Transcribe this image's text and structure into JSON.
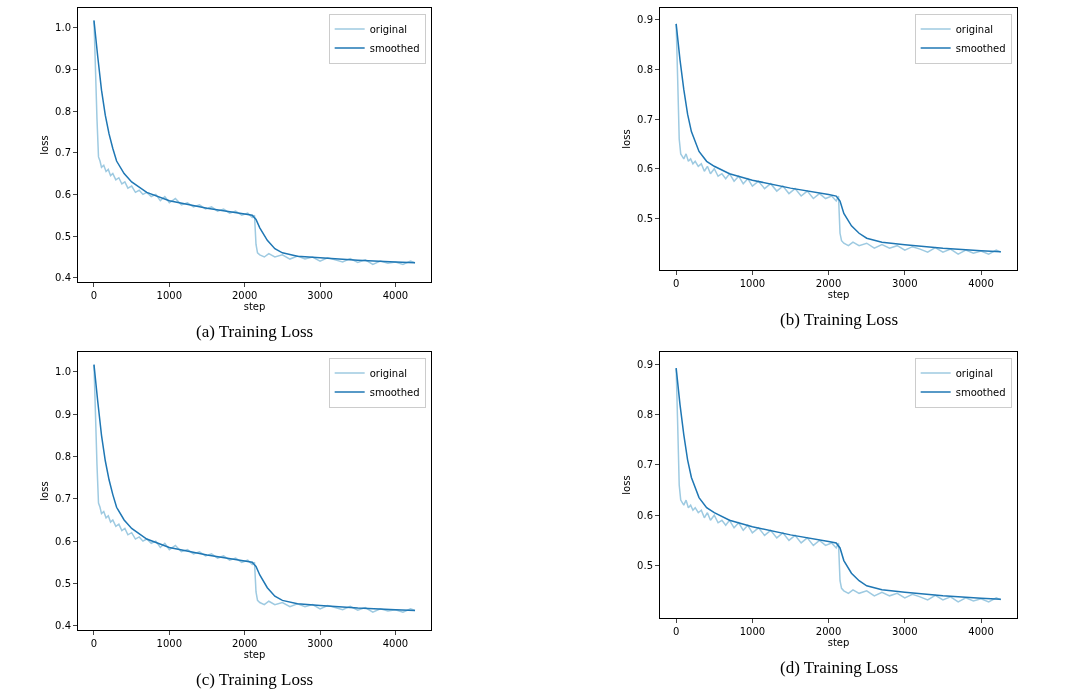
{
  "chart_data": [
    {
      "type": "line",
      "title": "(a) Training Loss",
      "xlabel": "step",
      "ylabel": "loss",
      "xlim": [
        -212,
        4472
      ],
      "ylim": [
        0.39,
        1.047
      ],
      "xticks": [
        0,
        1000,
        2000,
        3000,
        4000
      ],
      "yticks": [
        0.4,
        0.5,
        0.6,
        0.7,
        0.8,
        0.9,
        {
          "value": 1.0,
          "label": "1.0"
        }
      ],
      "legend": "top right",
      "series": [
        {
          "name": "original",
          "color": "#9ecae1",
          "x": [
            0,
            20,
            40,
            60,
            80,
            100,
            130,
            160,
            190,
            220,
            250,
            290,
            330,
            370,
            410,
            450,
            500,
            550,
            600,
            650,
            700,
            760,
            820,
            880,
            940,
            1000,
            1080,
            1160,
            1240,
            1320,
            1400,
            1480,
            1560,
            1640,
            1720,
            1800,
            1880,
            1960,
            2040,
            2100,
            2130,
            2150,
            2170,
            2200,
            2260,
            2320,
            2400,
            2500,
            2600,
            2700,
            2800,
            2900,
            3000,
            3100,
            3200,
            3300,
            3400,
            3500,
            3600,
            3700,
            3800,
            3900,
            4000,
            4100,
            4200,
            4260
          ],
          "values": [
            1.017,
            0.9,
            0.78,
            0.69,
            0.68,
            0.665,
            0.67,
            0.655,
            0.66,
            0.645,
            0.65,
            0.635,
            0.64,
            0.625,
            0.63,
            0.615,
            0.62,
            0.605,
            0.61,
            0.6,
            0.605,
            0.595,
            0.6,
            0.585,
            0.595,
            0.58,
            0.59,
            0.575,
            0.58,
            0.57,
            0.575,
            0.565,
            0.57,
            0.56,
            0.565,
            0.555,
            0.56,
            0.55,
            0.555,
            0.545,
            0.55,
            0.48,
            0.46,
            0.455,
            0.45,
            0.458,
            0.45,
            0.455,
            0.445,
            0.452,
            0.445,
            0.45,
            0.44,
            0.448,
            0.443,
            0.438,
            0.446,
            0.437,
            0.443,
            0.432,
            0.44,
            0.435,
            0.438,
            0.432,
            0.44,
            0.436
          ]
        },
        {
          "name": "smoothed",
          "color": "#1f77b4",
          "x": [
            0,
            50,
            100,
            150,
            200,
            250,
            300,
            400,
            500,
            700,
            1000,
            1500,
            2000,
            2100,
            2150,
            2200,
            2300,
            2400,
            2500,
            2700,
            3000,
            3500,
            4000,
            4260
          ],
          "values": [
            1.017,
            0.93,
            0.85,
            0.79,
            0.745,
            0.71,
            0.68,
            0.65,
            0.63,
            0.605,
            0.585,
            0.567,
            0.553,
            0.55,
            0.54,
            0.52,
            0.49,
            0.47,
            0.46,
            0.452,
            0.448,
            0.442,
            0.438,
            0.436
          ]
        }
      ]
    },
    {
      "type": "line",
      "title": "(b) Training Loss",
      "xlabel": "step",
      "ylabel": "loss",
      "xlim": [
        -212,
        4472
      ],
      "ylim": [
        0.396,
        0.924
      ],
      "xticks": [
        0,
        1000,
        2000,
        3000,
        4000
      ],
      "yticks": [
        0.5,
        0.6,
        0.7,
        0.8,
        0.9
      ],
      "legend": "top right",
      "series": [
        {
          "name": "original",
          "color": "#9ecae1",
          "x": [
            0,
            20,
            40,
            60,
            80,
            100,
            130,
            160,
            190,
            220,
            250,
            290,
            330,
            370,
            410,
            450,
            500,
            550,
            600,
            650,
            700,
            760,
            820,
            880,
            940,
            1000,
            1080,
            1160,
            1240,
            1320,
            1400,
            1480,
            1560,
            1640,
            1720,
            1800,
            1880,
            1960,
            2040,
            2100,
            2130,
            2150,
            2170,
            2200,
            2260,
            2320,
            2400,
            2500,
            2600,
            2700,
            2800,
            2900,
            3000,
            3100,
            3200,
            3300,
            3400,
            3500,
            3600,
            3700,
            3800,
            3900,
            4000,
            4100,
            4200,
            4260
          ],
          "values": [
            0.892,
            0.78,
            0.66,
            0.63,
            0.625,
            0.62,
            0.63,
            0.615,
            0.62,
            0.61,
            0.615,
            0.605,
            0.61,
            0.595,
            0.605,
            0.59,
            0.6,
            0.585,
            0.59,
            0.58,
            0.59,
            0.575,
            0.585,
            0.57,
            0.58,
            0.565,
            0.575,
            0.56,
            0.57,
            0.555,
            0.565,
            0.55,
            0.56,
            0.545,
            0.555,
            0.54,
            0.55,
            0.54,
            0.545,
            0.535,
            0.545,
            0.47,
            0.455,
            0.45,
            0.445,
            0.452,
            0.445,
            0.45,
            0.44,
            0.447,
            0.44,
            0.445,
            0.436,
            0.443,
            0.438,
            0.432,
            0.441,
            0.432,
            0.438,
            0.428,
            0.436,
            0.43,
            0.434,
            0.428,
            0.436,
            0.432
          ]
        },
        {
          "name": "smoothed",
          "color": "#1f77b4",
          "x": [
            0,
            50,
            100,
            150,
            200,
            300,
            400,
            500,
            700,
            1000,
            1500,
            2000,
            2100,
            2150,
            2200,
            2300,
            2400,
            2500,
            2700,
            3000,
            3500,
            4000,
            4260
          ],
          "values": [
            0.892,
            0.82,
            0.76,
            0.71,
            0.675,
            0.635,
            0.615,
            0.605,
            0.59,
            0.577,
            0.561,
            0.548,
            0.545,
            0.535,
            0.51,
            0.485,
            0.47,
            0.46,
            0.452,
            0.447,
            0.44,
            0.435,
            0.433
          ]
        }
      ]
    },
    {
      "type": "line",
      "title": "(c) Training Loss",
      "xlabel": "step",
      "ylabel": "loss",
      "xlim": [
        -212,
        4472
      ],
      "ylim": [
        0.39,
        1.047
      ],
      "xticks": [
        0,
        1000,
        2000,
        3000,
        4000
      ],
      "yticks": [
        0.4,
        0.5,
        0.6,
        0.7,
        0.8,
        0.9,
        {
          "value": 1.0,
          "label": "1.0"
        }
      ],
      "legend": "top right",
      "series": [
        {
          "name": "original",
          "color": "#9ecae1",
          "x": [
            0,
            20,
            40,
            60,
            80,
            100,
            130,
            160,
            190,
            220,
            250,
            290,
            330,
            370,
            410,
            450,
            500,
            550,
            600,
            650,
            700,
            760,
            820,
            880,
            940,
            1000,
            1080,
            1160,
            1240,
            1320,
            1400,
            1480,
            1560,
            1640,
            1720,
            1800,
            1880,
            1960,
            2040,
            2100,
            2130,
            2150,
            2170,
            2200,
            2260,
            2320,
            2400,
            2500,
            2600,
            2700,
            2800,
            2900,
            3000,
            3100,
            3200,
            3300,
            3400,
            3500,
            3600,
            3700,
            3800,
            3900,
            4000,
            4100,
            4200,
            4260
          ],
          "values": [
            1.017,
            0.9,
            0.78,
            0.69,
            0.68,
            0.665,
            0.67,
            0.655,
            0.66,
            0.645,
            0.65,
            0.635,
            0.64,
            0.625,
            0.63,
            0.615,
            0.62,
            0.605,
            0.61,
            0.6,
            0.605,
            0.595,
            0.6,
            0.585,
            0.595,
            0.58,
            0.59,
            0.575,
            0.58,
            0.57,
            0.575,
            0.565,
            0.57,
            0.56,
            0.565,
            0.555,
            0.56,
            0.55,
            0.555,
            0.545,
            0.55,
            0.48,
            0.46,
            0.455,
            0.45,
            0.458,
            0.45,
            0.455,
            0.445,
            0.452,
            0.445,
            0.45,
            0.44,
            0.448,
            0.443,
            0.438,
            0.446,
            0.437,
            0.443,
            0.432,
            0.44,
            0.435,
            0.438,
            0.432,
            0.44,
            0.436
          ]
        },
        {
          "name": "smoothed",
          "color": "#1f77b4",
          "x": [
            0,
            50,
            100,
            150,
            200,
            250,
            300,
            400,
            500,
            700,
            1000,
            1500,
            2000,
            2100,
            2150,
            2200,
            2300,
            2400,
            2500,
            2700,
            3000,
            3500,
            4000,
            4260
          ],
          "values": [
            1.017,
            0.93,
            0.85,
            0.79,
            0.745,
            0.71,
            0.68,
            0.65,
            0.63,
            0.605,
            0.585,
            0.567,
            0.553,
            0.55,
            0.54,
            0.52,
            0.49,
            0.47,
            0.46,
            0.452,
            0.448,
            0.442,
            0.438,
            0.436
          ]
        }
      ]
    },
    {
      "type": "line",
      "title": "(d) Training Loss",
      "xlabel": "step",
      "ylabel": "loss",
      "xlim": [
        -212,
        4472
      ],
      "ylim": [
        0.396,
        0.924
      ],
      "xticks": [
        0,
        1000,
        2000,
        3000,
        4000
      ],
      "yticks": [
        0.5,
        0.6,
        0.7,
        0.8,
        0.9
      ],
      "legend": "top right",
      "series": [
        {
          "name": "original",
          "color": "#9ecae1",
          "x": [
            0,
            20,
            40,
            60,
            80,
            100,
            130,
            160,
            190,
            220,
            250,
            290,
            330,
            370,
            410,
            450,
            500,
            550,
            600,
            650,
            700,
            760,
            820,
            880,
            940,
            1000,
            1080,
            1160,
            1240,
            1320,
            1400,
            1480,
            1560,
            1640,
            1720,
            1800,
            1880,
            1960,
            2040,
            2100,
            2130,
            2150,
            2170,
            2200,
            2260,
            2320,
            2400,
            2500,
            2600,
            2700,
            2800,
            2900,
            3000,
            3100,
            3200,
            3300,
            3400,
            3500,
            3600,
            3700,
            3800,
            3900,
            4000,
            4100,
            4200,
            4260
          ],
          "values": [
            0.892,
            0.78,
            0.66,
            0.63,
            0.625,
            0.62,
            0.63,
            0.615,
            0.62,
            0.61,
            0.615,
            0.605,
            0.61,
            0.595,
            0.605,
            0.59,
            0.6,
            0.585,
            0.59,
            0.58,
            0.59,
            0.575,
            0.585,
            0.57,
            0.58,
            0.565,
            0.575,
            0.56,
            0.57,
            0.555,
            0.565,
            0.55,
            0.56,
            0.545,
            0.555,
            0.54,
            0.55,
            0.54,
            0.545,
            0.535,
            0.545,
            0.47,
            0.455,
            0.45,
            0.445,
            0.452,
            0.445,
            0.45,
            0.44,
            0.447,
            0.44,
            0.445,
            0.436,
            0.443,
            0.438,
            0.432,
            0.441,
            0.432,
            0.438,
            0.428,
            0.436,
            0.43,
            0.434,
            0.428,
            0.436,
            0.432
          ]
        },
        {
          "name": "smoothed",
          "color": "#1f77b4",
          "x": [
            0,
            50,
            100,
            150,
            200,
            300,
            400,
            500,
            700,
            1000,
            1500,
            2000,
            2100,
            2150,
            2200,
            2300,
            2400,
            2500,
            2700,
            3000,
            3500,
            4000,
            4260
          ],
          "values": [
            0.892,
            0.82,
            0.76,
            0.71,
            0.675,
            0.635,
            0.615,
            0.605,
            0.59,
            0.577,
            0.561,
            0.548,
            0.545,
            0.535,
            0.51,
            0.485,
            0.47,
            0.46,
            0.452,
            0.447,
            0.44,
            0.435,
            0.433
          ]
        }
      ]
    }
  ]
}
